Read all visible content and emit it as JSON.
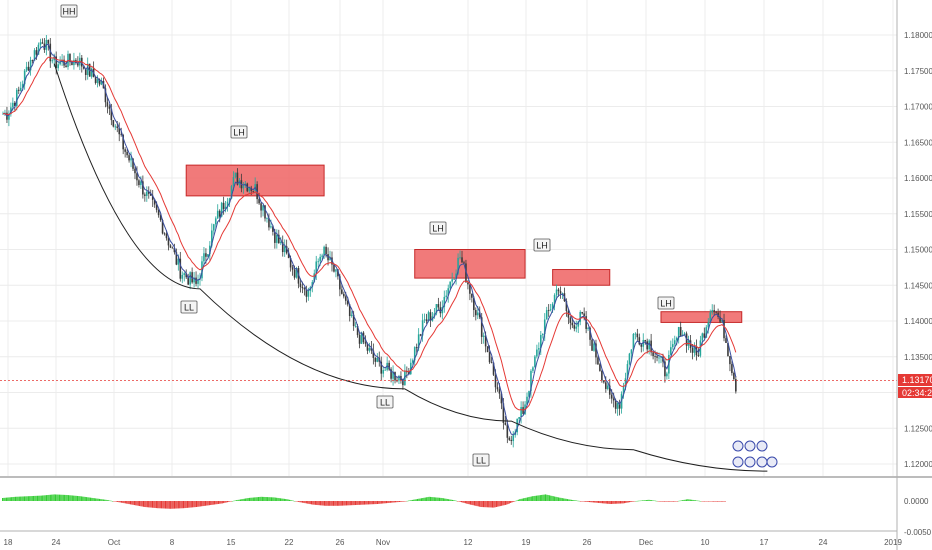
{
  "colors": {
    "up": "#26a69a",
    "down": "#3a3a3a",
    "ema_fast": "#3a4ea0",
    "ema_slow": "#e53935",
    "arc": "#1f1f1f",
    "zone_fill": "#ef6b6b",
    "zone_border": "#c62828",
    "price_line": "#e53935",
    "osc_up": "#33cc33",
    "osc_down": "#e53935",
    "axis_text": "#555555",
    "grid": "#ececec"
  },
  "chart_data": [
    {
      "type": "candlestick",
      "title": "",
      "xlabel": "",
      "ylabel": "",
      "ylim": [
        1.1165,
        1.183
      ],
      "x_ticks": [
        "18",
        "24",
        "Oct",
        "8",
        "15",
        "22",
        "26",
        "Nov",
        "12",
        "19",
        "26",
        "Dec",
        "10",
        "17",
        "24",
        "2019"
      ],
      "y_ticks": [
        "1.18000",
        "1.17500",
        "1.17000",
        "1.16500",
        "1.16000",
        "1.15500",
        "1.15000",
        "1.14500",
        "1.14000",
        "1.13500",
        "1.13000",
        "1.12500",
        "1.12000"
      ],
      "current_price": "1.13170",
      "countdown": "02:34:20",
      "swing_labels": [
        "HH",
        "LH",
        "LL",
        "LH",
        "LL",
        "LH",
        "LL",
        "LH"
      ],
      "price_path": [
        [
          1.169,
          2
        ],
        [
          1.172,
          8
        ],
        [
          1.176,
          13
        ],
        [
          1.1795,
          20
        ],
        [
          1.176,
          26
        ],
        [
          1.1765,
          38
        ],
        [
          1.173,
          50
        ],
        [
          1.165,
          60
        ],
        [
          1.159,
          70
        ],
        [
          1.154,
          80
        ],
        [
          1.147,
          90
        ],
        [
          1.145,
          98
        ],
        [
          1.154,
          108
        ],
        [
          1.16,
          118
        ],
        [
          1.1585,
          128
        ],
        [
          1.152,
          138
        ],
        [
          1.147,
          148
        ],
        [
          1.144,
          155
        ],
        [
          1.15,
          162
        ],
        [
          1.147,
          168
        ],
        [
          1.139,
          178
        ],
        [
          1.134,
          190
        ],
        [
          1.1325,
          198
        ],
        [
          1.132,
          204
        ],
        [
          1.14,
          214
        ],
        [
          1.142,
          222
        ],
        [
          1.149,
          232
        ],
        [
          1.1435,
          238
        ],
        [
          1.136,
          246
        ],
        [
          1.129,
          252
        ],
        [
          1.123,
          256
        ],
        [
          1.1275,
          264
        ],
        [
          1.139,
          274
        ],
        [
          1.145,
          282
        ],
        [
          1.1395,
          288
        ],
        [
          1.1405,
          294
        ],
        [
          1.1345,
          302
        ],
        [
          1.129,
          308
        ],
        [
          1.1285,
          313
        ],
        [
          1.138,
          320
        ],
        [
          1.137,
          328
        ],
        [
          1.133,
          336
        ],
        [
          1.139,
          344
        ],
        [
          1.135,
          352
        ],
        [
          1.1425,
          360
        ],
        [
          1.1385,
          366
        ],
        [
          1.131,
          372
        ]
      ],
      "arc": [
        [
          1.176,
          26
        ],
        [
          1.1445,
          100
        ],
        [
          1.1305,
          204
        ],
        [
          1.126,
          258
        ],
        [
          1.122,
          320
        ],
        [
          1.119,
          388
        ]
      ],
      "zones": [
        {
          "y_top": 1.1618,
          "y_bottom": 1.1575,
          "x_from": 93,
          "x_to": 163
        },
        {
          "y_top": 1.15,
          "y_bottom": 1.146,
          "x_from": 209,
          "x_to": 265
        },
        {
          "y_top": 1.1472,
          "y_bottom": 1.145,
          "x_from": 279,
          "x_to": 308
        },
        {
          "y_top": 1.1413,
          "y_bottom": 1.1398,
          "x_from": 334,
          "x_to": 375
        }
      ]
    },
    {
      "type": "bar",
      "title": "",
      "xlabel": "",
      "ylabel": "",
      "y_ticks": [
        "0.0000",
        "-0.0050"
      ],
      "series": [
        {
          "values": [
            0.001,
            0.0014,
            0.0016,
            0.0018,
            0.0022,
            0.002,
            0.0016,
            0.001,
            0.0004,
            -0.0004,
            -0.0012,
            -0.002,
            -0.0024,
            -0.0026,
            -0.0024,
            -0.002,
            -0.0014,
            -0.0008,
            0.0002,
            0.001,
            0.0014,
            0.0012,
            0.0006,
            -0.0004,
            -0.0012,
            -0.0016,
            -0.0016,
            -0.0014,
            -0.0012,
            -0.001,
            -0.0006,
            -0.0002,
            0.0006,
            0.0014,
            0.001,
            0.0002,
            -0.001,
            -0.002,
            -0.0022,
            -0.0012,
            0.0006,
            0.0016,
            0.0022,
            0.0012,
            0.0004,
            -0.0002,
            -0.0006,
            -0.001,
            -0.0008,
            0.0,
            0.0004,
            -0.0002,
            -0.0002,
            0.0006,
            0.0,
            -0.0002
          ]
        }
      ]
    }
  ]
}
